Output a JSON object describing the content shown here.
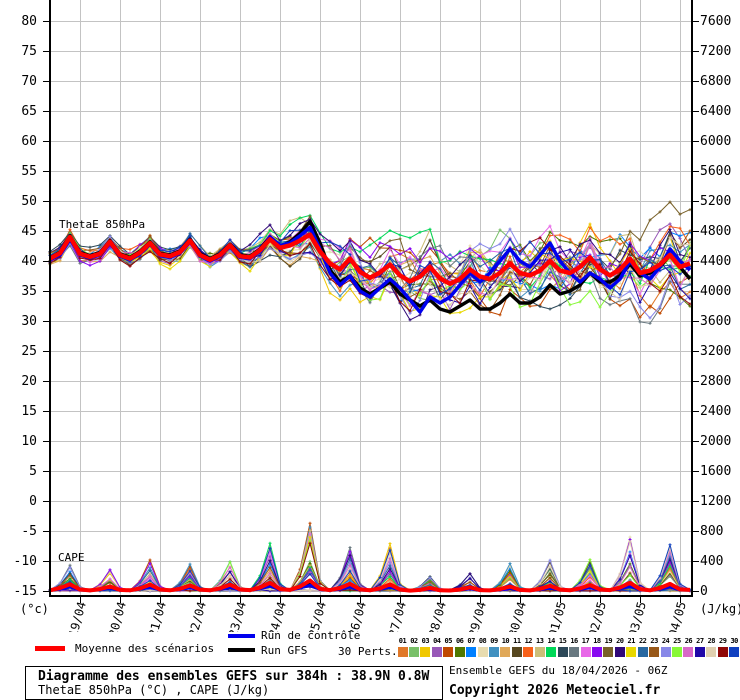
{
  "footer": {
    "title": "Diagramme des ensembles GEFS sur 384h : 38.9N 0.8W",
    "subtitle": "ThetaE 850hPa (°C) , CAPE (J/kg)",
    "run_info": "Ensemble GEFS du 18/04/2026 - 06Z",
    "copyright": "Copyright 2026 Meteociel.fr"
  },
  "legend": {
    "mean": {
      "label": "Moyenne des scénarios",
      "color": "#ff0000"
    },
    "control": {
      "label": "Run de contrôle",
      "color": "#0000ee"
    },
    "gfs": {
      "label": "Run GFS",
      "color": "#000000"
    },
    "perts_label": "30 Perts."
  },
  "chart_data": {
    "type": "line",
    "title": "Diagramme des ensembles GEFS sur 384h : 38.9N 0.8W",
    "annotations": {
      "thetae_label": "ThetaE 850hPa",
      "cape_label": "CAPE"
    },
    "left_axis": {
      "unit": "(°c)",
      "min": -15,
      "max": 80,
      "tick": 5
    },
    "right_axis": {
      "unit": "(J/kg)",
      "min": 0,
      "max": 7600,
      "tick": 400
    },
    "x_dates": [
      "19/04",
      "20/04",
      "21/04",
      "22/04",
      "23/04",
      "24/04",
      "25/04",
      "26/04",
      "27/04",
      "28/04",
      "29/04",
      "30/04",
      "01/05",
      "02/05",
      "03/05",
      "04/05"
    ],
    "x_hours_step": 6,
    "x_hours_max": 384,
    "grid": true,
    "series": {
      "thetae_mean": [
        40.4,
        41.3,
        44.0,
        41.2,
        40.7,
        41.2,
        43.2,
        41.0,
        40.4,
        41.4,
        43.0,
        41.1,
        40.8,
        41.5,
        43.4,
        41.0,
        40.2,
        41.0,
        42.6,
        40.8,
        40.6,
        41.8,
        43.6,
        42.2,
        42.6,
        43.4,
        44.4,
        41.6,
        39.6,
        38.6,
        40.4,
        38.2,
        37.2,
        38.1,
        39.4,
        37.6,
        36.6,
        37.4,
        39.0,
        37.1,
        36.2,
        37.0,
        38.6,
        37.4,
        37.0,
        38.0,
        39.6,
        38.0,
        37.6,
        38.4,
        40.0,
        38.4,
        38.0,
        39.0,
        40.6,
        38.6,
        37.6,
        38.6,
        40.4,
        38.0,
        38.4,
        39.4,
        41.0,
        39.0,
        39.6
      ],
      "thetae_control": [
        40.2,
        41.0,
        43.6,
        41.0,
        40.5,
        41.0,
        43.0,
        40.8,
        40.2,
        41.2,
        42.8,
        40.9,
        40.6,
        41.3,
        43.2,
        40.8,
        40.0,
        40.8,
        42.4,
        40.6,
        40.4,
        41.6,
        44.0,
        42.6,
        43.0,
        44.2,
        45.6,
        42.0,
        38.0,
        36.0,
        37.5,
        35.0,
        34.0,
        35.5,
        37.0,
        35.5,
        33.5,
        31.5,
        34.0,
        33.0,
        34.0,
        36.0,
        38.0,
        36.5,
        38.0,
        40.0,
        42.0,
        40.0,
        39.0,
        41.0,
        43.0,
        40.0,
        38.0,
        36.5,
        38.0,
        37.0,
        35.5,
        37.0,
        40.0,
        38.0,
        37.0,
        39.0,
        42.0,
        40.0,
        38.5
      ],
      "thetae_gfs": [
        40.5,
        41.5,
        44.2,
        41.4,
        40.9,
        41.4,
        43.4,
        41.2,
        40.6,
        41.6,
        43.2,
        41.3,
        41.0,
        41.7,
        43.6,
        41.2,
        40.4,
        41.2,
        42.8,
        41.0,
        40.8,
        42.0,
        44.0,
        42.4,
        43.2,
        44.6,
        46.6,
        43.0,
        38.5,
        36.5,
        37.5,
        35.5,
        34.5,
        35.5,
        36.5,
        34.5,
        33.5,
        32.5,
        33.5,
        32.0,
        31.5,
        32.5,
        33.5,
        32.0,
        32.0,
        33.0,
        34.5,
        33.0,
        33.0,
        34.0,
        36.0,
        34.5,
        35.0,
        36.0,
        38.0,
        36.5,
        36.5,
        37.5,
        39.5,
        37.5,
        38.0,
        39.0,
        41.0,
        39.0,
        37.0
      ],
      "thetae_spread_daily": [
        1.3,
        1.4,
        1.5,
        1.6,
        1.8,
        2.3,
        3.6,
        5.0,
        6.0,
        6.3,
        6.5,
        6.5,
        6.5,
        6.8,
        7.0,
        7.4,
        7.6
      ],
      "cape_mean": [
        10,
        40,
        90,
        20,
        8,
        25,
        60,
        15,
        10,
        35,
        85,
        20,
        10,
        30,
        75,
        18,
        10,
        35,
        85,
        20,
        12,
        45,
        110,
        25,
        15,
        60,
        140,
        30,
        12,
        40,
        95,
        22,
        10,
        35,
        90,
        20,
        5,
        15,
        40,
        10,
        6,
        20,
        50,
        12,
        8,
        25,
        60,
        15,
        8,
        30,
        70,
        18,
        10,
        35,
        80,
        20,
        12,
        45,
        110,
        25,
        10,
        40,
        95,
        22,
        15
      ],
      "cape_control": [
        5,
        20,
        50,
        10,
        4,
        15,
        35,
        8,
        5,
        20,
        45,
        10,
        5,
        15,
        40,
        9,
        5,
        20,
        45,
        10,
        6,
        25,
        60,
        12,
        8,
        35,
        80,
        15,
        6,
        20,
        50,
        11,
        5,
        20,
        45,
        10,
        3,
        8,
        20,
        5,
        3,
        10,
        25,
        6,
        4,
        12,
        30,
        8,
        4,
        15,
        35,
        9,
        5,
        18,
        40,
        10,
        6,
        25,
        60,
        12,
        5,
        20,
        50,
        11,
        8
      ],
      "cape_gfs": [
        6,
        25,
        55,
        12,
        5,
        18,
        40,
        9,
        6,
        22,
        50,
        11,
        6,
        18,
        45,
        10,
        6,
        22,
        50,
        11,
        7,
        28,
        65,
        14,
        9,
        40,
        90,
        18,
        7,
        24,
        55,
        12,
        6,
        22,
        50,
        11,
        3,
        9,
        22,
        5,
        4,
        11,
        28,
        6,
        5,
        14,
        32,
        8,
        5,
        16,
        38,
        9,
        6,
        20,
        45,
        11,
        7,
        28,
        65,
        14,
        6,
        22,
        55,
        12,
        9
      ],
      "cape_env_daily": [
        350,
        300,
        420,
        380,
        420,
        650,
        950,
        620,
        700,
        200,
        300,
        380,
        450,
        420,
        800,
        620,
        100
      ]
    },
    "members": [
      {
        "num": "01",
        "color": "#e07828"
      },
      {
        "num": "02",
        "color": "#78c068"
      },
      {
        "num": "03",
        "color": "#f0c800"
      },
      {
        "num": "04",
        "color": "#9858b8"
      },
      {
        "num": "05",
        "color": "#c04800"
      },
      {
        "num": "06",
        "color": "#507800"
      },
      {
        "num": "07",
        "color": "#0080ff"
      },
      {
        "num": "08",
        "color": "#e8dcb0"
      },
      {
        "num": "09",
        "color": "#4090c0"
      },
      {
        "num": "10",
        "color": "#e0a858"
      },
      {
        "num": "11",
        "color": "#584820"
      },
      {
        "num": "12",
        "color": "#f86018"
      },
      {
        "num": "13",
        "color": "#ccbe78"
      },
      {
        "num": "14",
        "color": "#00d858"
      },
      {
        "num": "15",
        "color": "#2c4858"
      },
      {
        "num": "16",
        "color": "#687880"
      },
      {
        "num": "17",
        "color": "#e868e8"
      },
      {
        "num": "18",
        "color": "#8808f0"
      },
      {
        "num": "19",
        "color": "#786028"
      },
      {
        "num": "20",
        "color": "#300878"
      },
      {
        "num": "21",
        "color": "#e8d800"
      },
      {
        "num": "22",
        "color": "#2868a0"
      },
      {
        "num": "23",
        "color": "#985818"
      },
      {
        "num": "24",
        "color": "#8888e8"
      },
      {
        "num": "25",
        "color": "#88f838"
      },
      {
        "num": "26",
        "color": "#d868c8"
      },
      {
        "num": "27",
        "color": "#2008a8"
      },
      {
        "num": "28",
        "color": "#e0d0b0"
      },
      {
        "num": "29",
        "color": "#900808"
      },
      {
        "num": "30",
        "color": "#1040c0"
      }
    ]
  }
}
